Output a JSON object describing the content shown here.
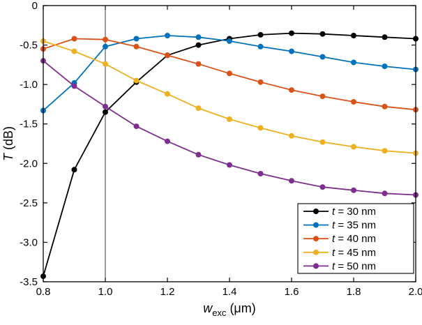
{
  "figure": {
    "background": "#ffffff"
  },
  "chart_data": {
    "type": "line",
    "x": [
      0.8,
      0.9,
      1.0,
      1.1,
      1.2,
      1.3,
      1.4,
      1.5,
      1.6,
      1.7,
      1.8,
      1.9,
      2.0
    ],
    "series": [
      {
        "name": "t = 30 nm",
        "color": "#000000",
        "values": [
          -3.43,
          -2.08,
          -1.35,
          -0.97,
          -0.63,
          -0.5,
          -0.42,
          -0.37,
          -0.35,
          -0.36,
          -0.38,
          -0.4,
          -0.42
        ]
      },
      {
        "name": "t = 35 nm",
        "color": "#0072BD",
        "values": [
          -1.33,
          -0.98,
          -0.52,
          -0.42,
          -0.38,
          -0.4,
          -0.45,
          -0.52,
          -0.58,
          -0.65,
          -0.72,
          -0.77,
          -0.81
        ]
      },
      {
        "name": "t = 40 nm",
        "color": "#D95319",
        "values": [
          -0.55,
          -0.42,
          -0.43,
          -0.52,
          -0.63,
          -0.74,
          -0.86,
          -0.97,
          -1.07,
          -1.15,
          -1.22,
          -1.28,
          -1.32
        ]
      },
      {
        "name": "t = 45 nm",
        "color": "#EDB120",
        "values": [
          -0.45,
          -0.58,
          -0.74,
          -0.95,
          -1.12,
          -1.3,
          -1.44,
          -1.55,
          -1.65,
          -1.73,
          -1.79,
          -1.84,
          -1.87
        ]
      },
      {
        "name": "t = 50 nm",
        "color": "#7E2F8E",
        "values": [
          -0.7,
          -1.02,
          -1.28,
          -1.53,
          -1.72,
          -1.89,
          -2.02,
          -2.13,
          -2.22,
          -2.3,
          -2.34,
          -2.38,
          -2.4
        ]
      }
    ],
    "xlabel": {
      "italic": "w",
      "sub": "exc",
      "rest": " (μm)"
    },
    "ylabel": {
      "italic": "T",
      "rest": " (dB)"
    },
    "xlim": [
      0.8,
      2.0
    ],
    "ylim": [
      -3.5,
      0
    ],
    "xticks": [
      0.8,
      1.0,
      1.2,
      1.4,
      1.6,
      1.8,
      2.0
    ],
    "xtick_labels": [
      "0.8",
      "1.0",
      "1.2",
      "1.4",
      "1.6",
      "1.8",
      "2.0"
    ],
    "yticks": [
      0,
      -0.5,
      -1.0,
      -1.5,
      -2.0,
      -2.5,
      -3.0,
      -3.5
    ],
    "ytick_labels": [
      "0",
      "-0.5",
      "-1.0",
      "-1.5",
      "-2.0",
      "-2.5",
      "-3.0",
      "-3.5"
    ],
    "vline_x": 1.0,
    "vline_color": "#3c3c3c",
    "axis_color": "#000000",
    "grid": false,
    "legend_position": "bottom-right",
    "marker": "circle",
    "marker_radius": 4
  }
}
